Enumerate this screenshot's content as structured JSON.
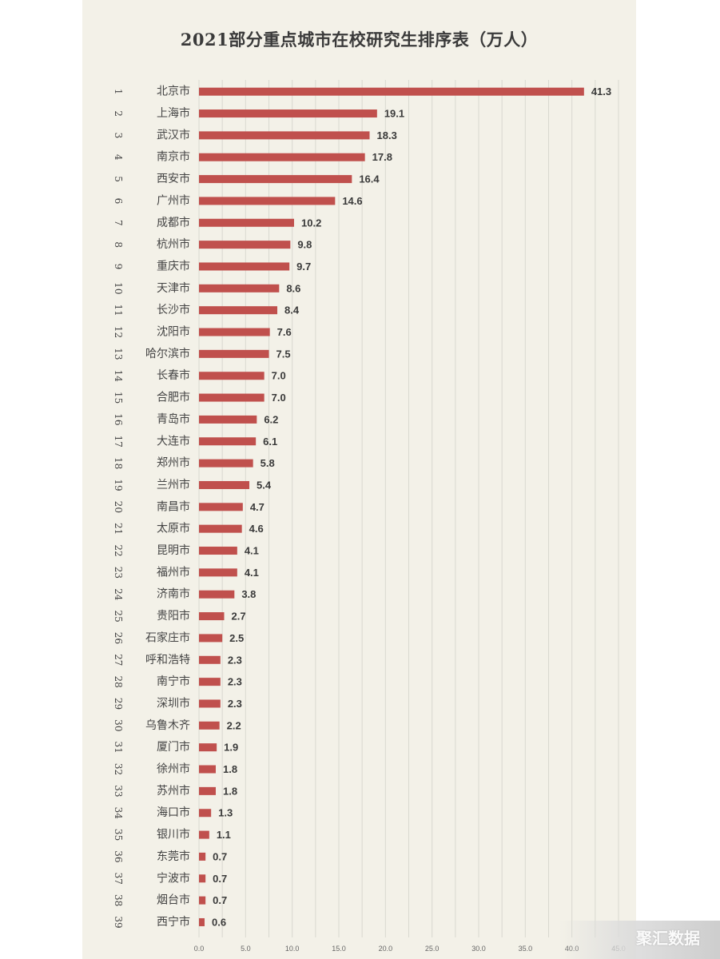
{
  "chart_data": {
    "type": "bar",
    "orientation": "horizontal",
    "title": "2021部分重点城市在校研究生排序表（万人）",
    "ranks": [
      "1",
      "2",
      "3",
      "4",
      "5",
      "6",
      "7",
      "8",
      "9",
      "10",
      "11",
      "12",
      "13",
      "14",
      "15",
      "16",
      "17",
      "18",
      "19",
      "20",
      "21",
      "22",
      "23",
      "24",
      "25",
      "26",
      "27",
      "28",
      "29",
      "30",
      "31",
      "32",
      "33",
      "34",
      "35",
      "36",
      "37",
      "38",
      "39"
    ],
    "categories": [
      "北京市",
      "上海市",
      "武汉市",
      "南京市",
      "西安市",
      "广州市",
      "成都市",
      "杭州市",
      "重庆市",
      "天津市",
      "长沙市",
      "沈阳市",
      "哈尔滨市",
      "长春市",
      "合肥市",
      "青岛市",
      "大连市",
      "郑州市",
      "兰州市",
      "南昌市",
      "太原市",
      "昆明市",
      "福州市",
      "济南市",
      "贵阳市",
      "石家庄市",
      "呼和浩特",
      "南宁市",
      "深圳市",
      "乌鲁木齐",
      "厦门市",
      "徐州市",
      "苏州市",
      "海口市",
      "银川市",
      "东莞市",
      "宁波市",
      "烟台市",
      "西宁市"
    ],
    "values": [
      41.3,
      19.1,
      18.3,
      17.8,
      16.4,
      14.6,
      10.2,
      9.8,
      9.7,
      8.6,
      8.4,
      7.6,
      7.5,
      7.0,
      7.0,
      6.2,
      6.1,
      5.8,
      5.4,
      4.7,
      4.6,
      4.1,
      4.1,
      3.8,
      2.7,
      2.5,
      2.3,
      2.3,
      2.3,
      2.2,
      1.9,
      1.8,
      1.8,
      1.3,
      1.1,
      0.7,
      0.7,
      0.7,
      0.6
    ],
    "value_labels": [
      "41.3",
      "19.1",
      "18.3",
      "17.8",
      "16.4",
      "14.6",
      "10.2",
      "9.8",
      "9.7",
      "8.6",
      "8.4",
      "7.6",
      "7.5",
      "7.0",
      "7.0",
      "6.2",
      "6.1",
      "5.8",
      "5.4",
      "4.7",
      "4.6",
      "4.1",
      "4.1",
      "3.8",
      "2.7",
      "2.5",
      "2.3",
      "2.3",
      "2.3",
      "2.2",
      "1.9",
      "1.8",
      "1.8",
      "1.3",
      "1.1",
      "0.7",
      "0.7",
      "0.7",
      "0.6"
    ],
    "xticks": [
      "0.0",
      "5.0",
      "10.0",
      "15.0",
      "20.0",
      "25.0",
      "30.0",
      "35.0",
      "40.0",
      "45.0"
    ],
    "xlim": [
      0,
      45
    ],
    "grid": true,
    "colors": {
      "bar": "#c0504d",
      "grid": "#d9d9d0",
      "background": "#f3f1e8",
      "text": "#3a3a3a"
    }
  },
  "watermark": "聚汇数据"
}
